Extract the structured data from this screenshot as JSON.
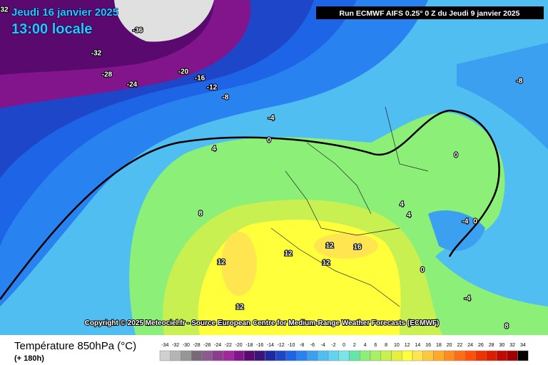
{
  "header": {
    "date": "Jeudi 16 janvier 2025",
    "time": "13:00 locale",
    "run": "Run ECMWF AIFS 0.25° 0 Z du Jeudi 9 janvier 2025"
  },
  "map": {
    "contour_labels": [
      32,
      -36,
      -32,
      -28,
      -24,
      -20,
      -16,
      -12,
      -8,
      -4,
      0,
      4,
      8,
      12,
      12,
      12,
      16,
      12,
      12,
      -8,
      0,
      -4,
      0,
      4,
      4,
      0,
      -4,
      8
    ]
  },
  "copyright": "Copyright © 2025 Meteociel.fr - Source European Centre for Medium-Range Weather Forecasts (ECMWF)",
  "legend": {
    "title": "Température 850hPa (°C)",
    "lead": "(+ 180h)",
    "scale": {
      "values": [
        -34,
        -32,
        -30,
        -28,
        -26,
        -24,
        -22,
        -20,
        -18,
        -16,
        -14,
        -12,
        -10,
        -8,
        -6,
        -4,
        -2,
        0,
        2,
        4,
        6,
        8,
        10,
        12,
        14,
        16,
        18,
        20,
        22,
        24,
        26,
        28,
        30,
        32,
        34
      ],
      "colors": [
        "#d0d0d0",
        "#b4b4b4",
        "#969696",
        "#786878",
        "#8c5a8c",
        "#8c3c8c",
        "#a0289c",
        "#82148c",
        "#5a0a6e",
        "#3c1478",
        "#1e28a0",
        "#1e46c8",
        "#1e64e6",
        "#2882f0",
        "#3ca0f0",
        "#50bef0",
        "#64d2f0",
        "#78e6e6",
        "#64e6aa",
        "#8cf078",
        "#aaf064",
        "#c8f050",
        "#e6f03c",
        "#ffff3c",
        "#ffe650",
        "#ffc83c",
        "#ffaa28",
        "#ff8c1e",
        "#ff6e14",
        "#ff500a",
        "#f03200",
        "#dc1e00",
        "#be0a00",
        "#a00000",
        "#000000"
      ]
    }
  }
}
